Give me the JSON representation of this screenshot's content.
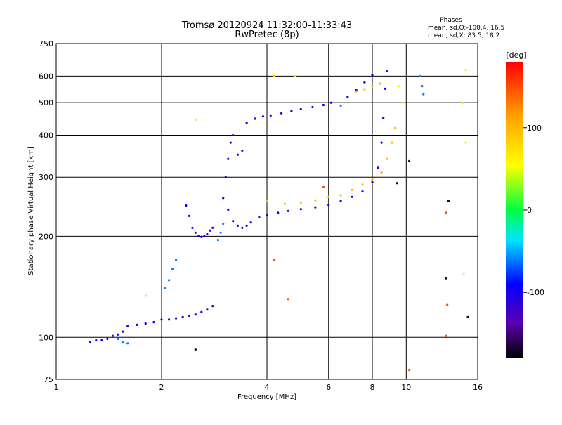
{
  "chart_data": {
    "type": "scatter",
    "title": "Tromsø 20120924 11:32:00-11:33:43",
    "subtitle": "RwPretec (8p)",
    "xlabel": "Frequency [MHz]",
    "ylabel": "Stationary phase Virtual Height [km]",
    "x_scale": "log",
    "y_scale": "log",
    "xlim": [
      1,
      16
    ],
    "ylim": [
      75,
      750
    ],
    "x_ticks": [
      1,
      2,
      4,
      6,
      8,
      10,
      16
    ],
    "y_ticks": [
      75,
      100,
      200,
      300,
      400,
      500,
      600,
      750
    ],
    "grid": true,
    "legend": {
      "title": "Phases",
      "lines": [
        "mean, sd,O:-100.4, 16.5",
        "mean, sd,X:  83.5, 18.2"
      ]
    },
    "colorbar": {
      "label": "[deg]",
      "range": [
        -180,
        180
      ],
      "ticks": [
        100,
        0,
        -100
      ]
    },
    "series": [
      {
        "phase": -100,
        "points": [
          [
            1.25,
            97
          ],
          [
            1.3,
            98
          ],
          [
            1.35,
            98
          ],
          [
            1.4,
            99
          ],
          [
            1.45,
            101
          ],
          [
            1.5,
            102
          ],
          [
            1.55,
            104
          ],
          [
            1.6,
            108
          ],
          [
            1.7,
            109
          ],
          [
            1.8,
            110
          ],
          [
            1.9,
            111
          ],
          [
            2.0,
            113
          ],
          [
            2.1,
            113
          ],
          [
            2.2,
            114
          ],
          [
            2.3,
            115
          ],
          [
            2.4,
            116
          ],
          [
            2.5,
            117
          ],
          [
            2.6,
            119
          ],
          [
            2.7,
            121
          ],
          [
            2.8,
            124
          ],
          [
            2.35,
            247
          ],
          [
            2.4,
            230
          ],
          [
            2.45,
            212
          ],
          [
            2.5,
            205
          ],
          [
            2.55,
            200
          ],
          [
            2.6,
            199
          ],
          [
            2.65,
            200
          ],
          [
            2.7,
            203
          ],
          [
            2.75,
            208
          ],
          [
            2.8,
            212
          ]
        ]
      },
      {
        "phase": -100,
        "points": [
          [
            3.0,
            260
          ],
          [
            3.05,
            300
          ],
          [
            3.1,
            340
          ],
          [
            3.15,
            380
          ],
          [
            3.2,
            400
          ],
          [
            3.3,
            350
          ],
          [
            3.4,
            360
          ],
          [
            3.1,
            240
          ],
          [
            3.2,
            222
          ],
          [
            3.3,
            215
          ],
          [
            3.4,
            212
          ],
          [
            3.5,
            215
          ],
          [
            3.6,
            220
          ],
          [
            3.8,
            228
          ],
          [
            4.0,
            232
          ],
          [
            4.3,
            235
          ],
          [
            4.6,
            238
          ],
          [
            5.0,
            241
          ],
          [
            5.5,
            244
          ],
          [
            6.0,
            248
          ],
          [
            6.5,
            255
          ],
          [
            7.0,
            262
          ],
          [
            7.5,
            272
          ],
          [
            8.0,
            290
          ],
          [
            8.3,
            320
          ],
          [
            8.5,
            380
          ],
          [
            8.6,
            450
          ],
          [
            8.7,
            550
          ],
          [
            8.8,
            620
          ]
        ]
      },
      {
        "phase": -100,
        "points": [
          [
            3.5,
            435
          ],
          [
            3.7,
            448
          ],
          [
            3.9,
            455
          ],
          [
            4.1,
            458
          ],
          [
            4.4,
            465
          ],
          [
            4.7,
            472
          ],
          [
            5.0,
            478
          ],
          [
            5.4,
            485
          ],
          [
            5.8,
            492
          ],
          [
            6.1,
            500
          ],
          [
            6.8,
            520
          ],
          [
            7.2,
            545
          ],
          [
            7.6,
            575
          ],
          [
            8.0,
            605
          ]
        ]
      },
      {
        "phase": 100,
        "points": [
          [
            4.0,
            255
          ],
          [
            4.5,
            250
          ],
          [
            5.0,
            252
          ],
          [
            5.5,
            256
          ],
          [
            6.0,
            262
          ],
          [
            6.5,
            265
          ],
          [
            7.0,
            275
          ],
          [
            7.5,
            285
          ],
          [
            8.0,
            295
          ],
          [
            8.5,
            310
          ],
          [
            8.8,
            340
          ],
          [
            9.1,
            380
          ],
          [
            9.3,
            420
          ],
          [
            7.2,
            540
          ],
          [
            7.6,
            548
          ],
          [
            8.0,
            560
          ],
          [
            8.4,
            570
          ]
        ]
      },
      {
        "phase": -60,
        "points": [
          [
            1.6,
            96
          ],
          [
            1.55,
            97
          ],
          [
            1.5,
            99
          ],
          [
            2.05,
            140
          ],
          [
            2.1,
            148
          ],
          [
            2.15,
            160
          ],
          [
            2.2,
            170
          ],
          [
            2.9,
            195
          ],
          [
            2.95,
            205
          ],
          [
            3.0,
            218
          ],
          [
            6.5,
            490
          ],
          [
            11.0,
            600
          ],
          [
            11.1,
            560
          ],
          [
            11.2,
            530
          ]
        ]
      },
      {
        "phase": 70,
        "points": [
          [
            1.8,
            133
          ],
          [
            2.5,
            445
          ],
          [
            4.2,
            602
          ],
          [
            4.8,
            600
          ],
          [
            9.5,
            560
          ],
          [
            9.8,
            500
          ],
          [
            14.5,
            500
          ],
          [
            14.8,
            625
          ],
          [
            14.8,
            380
          ],
          [
            14.6,
            155
          ]
        ]
      },
      {
        "phase": 150,
        "points": [
          [
            4.2,
            170
          ],
          [
            4.6,
            130
          ],
          [
            5.8,
            280
          ],
          [
            10.2,
            80
          ],
          [
            13.0,
            235
          ],
          [
            13.0,
            101
          ],
          [
            13.1,
            125
          ]
        ]
      },
      {
        "phase": -165,
        "points": [
          [
            2.5,
            92
          ],
          [
            9.4,
            288
          ],
          [
            10.2,
            335
          ],
          [
            13.0,
            150
          ],
          [
            13.2,
            255
          ],
          [
            15.0,
            115
          ]
        ]
      }
    ]
  }
}
